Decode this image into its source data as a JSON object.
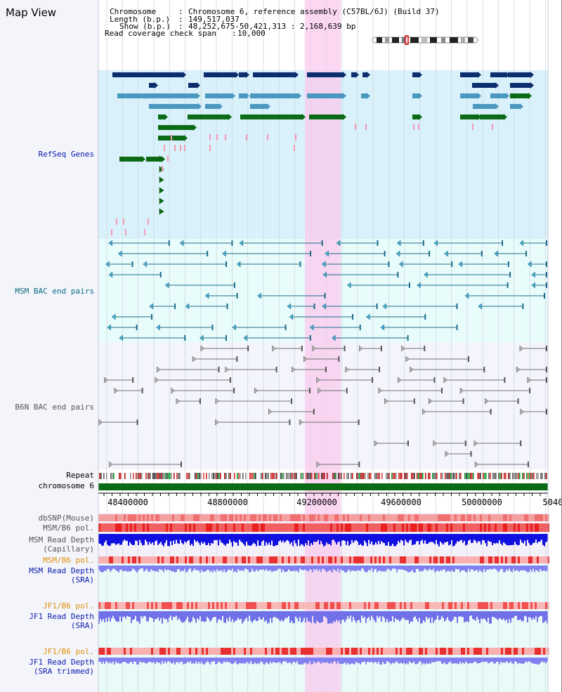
{
  "panel": {
    "title": "Map View"
  },
  "info": {
    "chromosome_label": "Chromosome",
    "chromosome_value": "Chromosome 6, reference assembly (C57BL/6J) (Build 37)",
    "length_label": "Length (b.p.)",
    "length_value": "149,517,037",
    "show_label": "Show (b.p.)",
    "show_value": "48,252,675-50,421,313 : 2,168,639 bp",
    "coverage_label": "Read coverage check span",
    "coverage_value": "10,000"
  },
  "tracks": {
    "refseq": "RefSeq Genes",
    "msm_bac": "MSM BAC end pairs",
    "b6n_bac": "B6N BAC end pairs",
    "repeat": "Repeat",
    "chromosome": "chromosome 6",
    "dbsnp": "dbSNP(Mouse)",
    "msm_b6_pol": "MSM/B6 pol.",
    "msm_depth_cap_1": "MSM Read Depth",
    "msm_depth_cap_2": "(Capillary)",
    "msm_b6_pol_2": "MSM/B6 pol.",
    "msm_depth_sra_1": "MSM Read Depth",
    "msm_depth_sra_2": "(SRA)",
    "jf1_b6_pol": "JF1/B6 pol.",
    "jf1_depth_sra_1": "JF1 Read Depth",
    "jf1_depth_sra_2": "(SRA)",
    "jf1_b6_pol_2": "JF1/B6 pol.",
    "jf1_depth_trim_1": "JF1 Read Depth",
    "jf1_depth_trim_2": "(SRA trimmed)"
  },
  "axis": {
    "ticks": [
      "48400000",
      "48800000",
      "49200000",
      "49600000",
      "50000000",
      "5040"
    ]
  },
  "colors": {
    "refseq_bg": "#d9f1fa",
    "msm_bg": "#e9fcfc",
    "b6n_bg": "#f4f5fc",
    "highlight": "#f8d8f3",
    "navy": "#0d2e6e",
    "steel": "#4a97c0",
    "green": "#0b6a14",
    "pink": "#f59ab5",
    "teal_line": "#1e6c8a",
    "gray_line": "#707070",
    "chrom_bar": "#0b6a14",
    "label_blue": "#0a1aa8",
    "label_teal": "#0d6a80",
    "label_gray": "#555555",
    "label_orange": "#e0900a"
  }
}
